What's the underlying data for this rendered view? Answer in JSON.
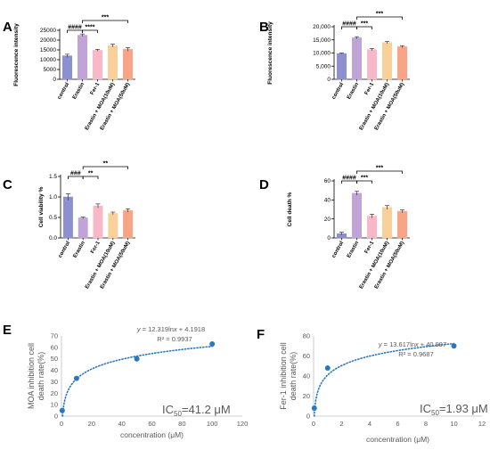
{
  "chart_data": [
    {
      "panel": "A",
      "type": "bar",
      "ylabel": "Fluorescence intensity",
      "ylim": [
        0,
        25000
      ],
      "yticks": [
        0,
        5000,
        10000,
        15000,
        20000,
        25000
      ],
      "ytick_labels": [
        "0",
        "5000",
        "10000",
        "15000",
        "20000",
        "25000"
      ],
      "categories": [
        "control",
        "Erastin",
        "Fer-1",
        "Erastin + MOA(10uM)",
        "Erastin + MOA(50uM)"
      ],
      "values": [
        12000,
        22500,
        14800,
        17200,
        15300
      ],
      "errors": [
        800,
        600,
        500,
        700,
        900
      ],
      "significance": [
        {
          "from": 0,
          "to": 1,
          "label": "####",
          "level": 1
        },
        {
          "from": 1,
          "to": 2,
          "label": "****",
          "level": 1
        },
        {
          "from": 1,
          "to": 4,
          "label": "***",
          "level": 2
        }
      ]
    },
    {
      "panel": "B",
      "type": "bar",
      "ylabel": "Fluorescence intensity",
      "ylim": [
        0,
        20000
      ],
      "yticks": [
        0,
        5000,
        10000,
        15000,
        20000
      ],
      "ytick_labels": [
        "0",
        "5,000",
        "10,000",
        "15,000",
        "20,000"
      ],
      "categories": [
        "control",
        "Erastin",
        "Fer-1",
        "Erastin + MOA(10uM)",
        "Erastin + MOA(50uM)"
      ],
      "values": [
        9800,
        15800,
        11300,
        14000,
        12400
      ],
      "errors": [
        200,
        400,
        400,
        400,
        400
      ],
      "significance": [
        {
          "from": 0,
          "to": 1,
          "label": "####",
          "level": 1
        },
        {
          "from": 1,
          "to": 2,
          "label": "***",
          "level": 1
        },
        {
          "from": 1,
          "to": 4,
          "label": "***",
          "level": 2
        }
      ]
    },
    {
      "panel": "C",
      "type": "bar",
      "ylabel": "Cell viability %",
      "ylim": [
        0,
        1.5
      ],
      "yticks": [
        0,
        0.5,
        1.0,
        1.5
      ],
      "ytick_labels": [
        "0.0",
        "0.5",
        "1.0",
        "1.5"
      ],
      "categories": [
        "control",
        "Erastin",
        "Fer-1",
        "Erastin + MOA(10uM)",
        "Erastin + MOA(50uM)"
      ],
      "values": [
        1.0,
        0.49,
        0.78,
        0.6,
        0.67
      ],
      "errors": [
        0.08,
        0.02,
        0.05,
        0.03,
        0.04
      ],
      "significance": [
        {
          "from": 0,
          "to": 1,
          "label": "###",
          "level": 1
        },
        {
          "from": 1,
          "to": 2,
          "label": "**",
          "level": 1
        },
        {
          "from": 1,
          "to": 4,
          "label": "**",
          "level": 2
        }
      ]
    },
    {
      "panel": "D",
      "type": "bar",
      "ylabel": "Cell death %",
      "ylim": [
        0,
        60
      ],
      "yticks": [
        0,
        20,
        40,
        60
      ],
      "ytick_labels": [
        "0",
        "20",
        "40",
        "60"
      ],
      "categories": [
        "control",
        "Erastin",
        "Fer-1",
        "Erastin + MOA(10uM)",
        "Erastin + MOA(50uM)"
      ],
      "values": [
        4.5,
        47,
        23,
        32,
        28
      ],
      "errors": [
        1.5,
        2,
        2,
        2,
        1.5
      ],
      "significance": [
        {
          "from": 0,
          "to": 1,
          "label": "####",
          "level": 1
        },
        {
          "from": 1,
          "to": 2,
          "label": "***",
          "level": 1
        },
        {
          "from": 1,
          "to": 4,
          "label": "***",
          "level": 2
        }
      ]
    },
    {
      "panel": "E",
      "type": "scatter",
      "xlabel": "concentration  (μM)",
      "ylabel": "MOA inhibition cell death rate(%)",
      "xlim": [
        0,
        120
      ],
      "ylim": [
        0,
        70
      ],
      "xticks": [
        0,
        20,
        40,
        60,
        80,
        100,
        120
      ],
      "yticks": [
        0,
        10,
        20,
        30,
        40,
        50,
        60,
        70
      ],
      "x": [
        0.5,
        10,
        50,
        100
      ],
      "y": [
        5,
        33,
        50,
        63
      ],
      "trendline": {
        "type": "log",
        "a": 12.319,
        "b": 4.1918
      },
      "equation_prefix": "y",
      "equation_body": " = 12.319ln",
      "equation_var": "x",
      "equation_suffix": " + 4.1918",
      "r2": "R² = 0.9937",
      "ic50_prefix": "IC",
      "ic50_sub": "50",
      "ic50_value": "=41.2 μM"
    },
    {
      "panel": "F",
      "type": "scatter",
      "xlabel": "concentration  (μM)",
      "ylabel": "Fer-1 inhibition cell death rate(%)",
      "xlim": [
        0,
        12
      ],
      "ylim": [
        0,
        80
      ],
      "xticks": [
        0,
        2,
        4,
        6,
        8,
        10,
        12
      ],
      "yticks": [
        0,
        20,
        40,
        60,
        80
      ],
      "x": [
        0.05,
        1,
        10
      ],
      "y": [
        8,
        48,
        70
      ],
      "trendline": {
        "type": "log",
        "a": 13.617,
        "b": 40.997
      },
      "equation_prefix": "y",
      "equation_body": " = 13.617ln",
      "equation_var": "x",
      "equation_suffix": " + 40.997",
      "r2": "R² = 0.9687",
      "ic50_prefix": "IC",
      "ic50_sub": "50",
      "ic50_value": "=1.93 μM"
    }
  ],
  "colors": {
    "bars": [
      "#8c8fd0",
      "#c0a4d8",
      "#f7b9c8",
      "#f9cf9a",
      "#f7a586"
    ],
    "point": "#2b78c2",
    "trend": "#2b78c2",
    "axis": "#000000",
    "gaxis": "#bfbfbf"
  }
}
